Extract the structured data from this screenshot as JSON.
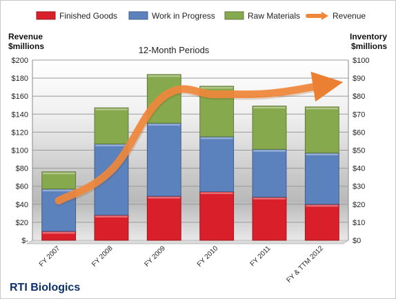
{
  "company": "RTI Biologics",
  "chart_data": {
    "type": "bar",
    "stacked": true,
    "title": "12-Month Periods",
    "categories": [
      "FY 2007",
      "FY 2008",
      "FY 2009",
      "FY 2010",
      "FY 2011",
      "FY & TTM 2012"
    ],
    "ylabel_left": [
      "Revenue",
      "$millions"
    ],
    "ylabel_right": [
      "Inventory",
      "$millions"
    ],
    "ylim_left": [
      0,
      200
    ],
    "ylim_right": [
      0,
      100
    ],
    "yticks_left": [
      "$-",
      "$20",
      "$40",
      "$60",
      "$80",
      "$100",
      "$120",
      "$140",
      "$160",
      "$180",
      "$200"
    ],
    "yticks_right": [
      "$0",
      "$10",
      "$20",
      "$30",
      "$40",
      "$50",
      "$60",
      "$70",
      "$80",
      "$90",
      "$100"
    ],
    "grid": true,
    "legend_position": "top",
    "series": [
      {
        "name": "Finished Goods",
        "axis": "right",
        "color": "#d9202a",
        "values": [
          5,
          14,
          24.5,
          27,
          24,
          20
        ]
      },
      {
        "name": "Work in Progress",
        "axis": "right",
        "color": "#5b82bd",
        "values": [
          23.5,
          39.5,
          40.5,
          30.5,
          26.5,
          28.5
        ]
      },
      {
        "name": "Raw Materials",
        "axis": "right",
        "color": "#87a94e",
        "values": [
          9.5,
          20,
          27,
          28,
          24,
          25.5
        ]
      },
      {
        "name": "Revenue",
        "axis": "left",
        "type": "line",
        "color": "#f0883c",
        "values": [
          44,
          78,
          160,
          162,
          163,
          172
        ]
      }
    ]
  }
}
